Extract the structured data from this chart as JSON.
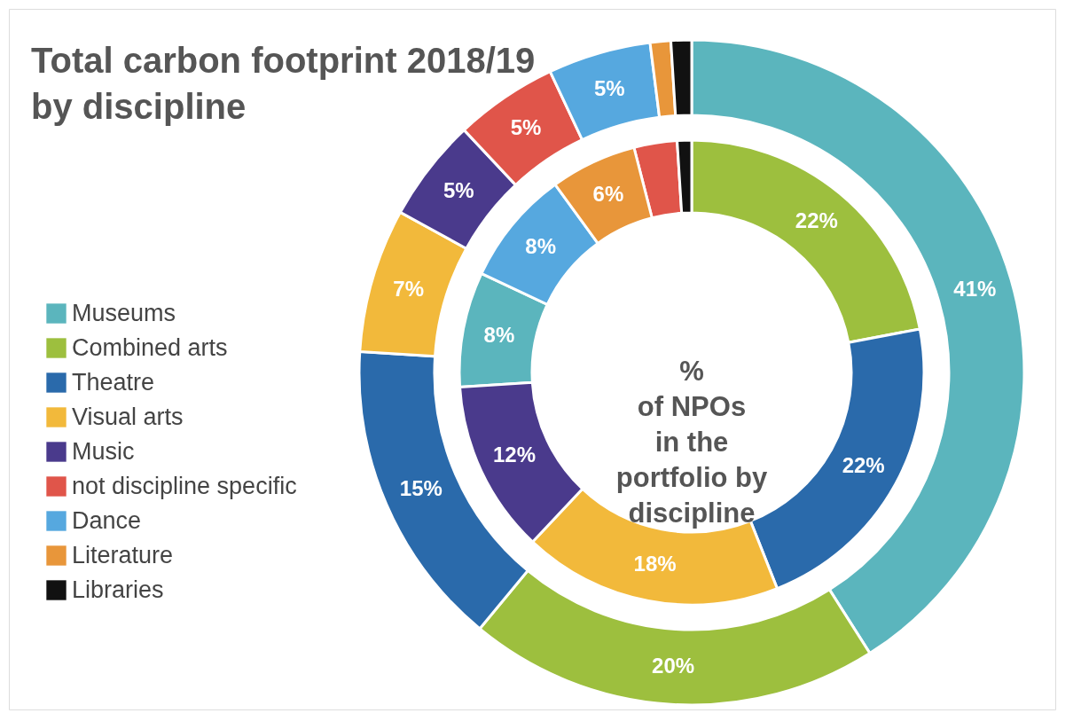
{
  "chart_data": {
    "type": "donut",
    "title": "Total carbon footprint 2018/19\nby discipline",
    "legend": "left",
    "categories": [
      "Museums",
      "Combined arts",
      "Theatre",
      "Visual arts",
      "Music",
      "not discipline specific",
      "Dance",
      "Literature",
      "Libraries"
    ],
    "colors": [
      "#5bb5bd",
      "#9dbf3e",
      "#2a6aab",
      "#f2b93b",
      "#4a3a8c",
      "#e0554a",
      "#56a8df",
      "#e8963a",
      "#111111"
    ],
    "series": [
      {
        "values": [
          41,
          20,
          15,
          7,
          5,
          5,
          5,
          1,
          1
        ],
        "value_labels": [
          "41%",
          "20%",
          "15%",
          "7%",
          "5%",
          "5%",
          "5%",
          null,
          null
        ]
      },
      {
        "name": "%\nof NPOs\nin the\nportfolio by\ndiscipline",
        "values": [
          8,
          22,
          22,
          18,
          12,
          3,
          8,
          6,
          1
        ],
        "value_labels": [
          "8%",
          "22%",
          "22%",
          "18%",
          "12%",
          null,
          "8%",
          "6%",
          null
        ]
      }
    ]
  }
}
